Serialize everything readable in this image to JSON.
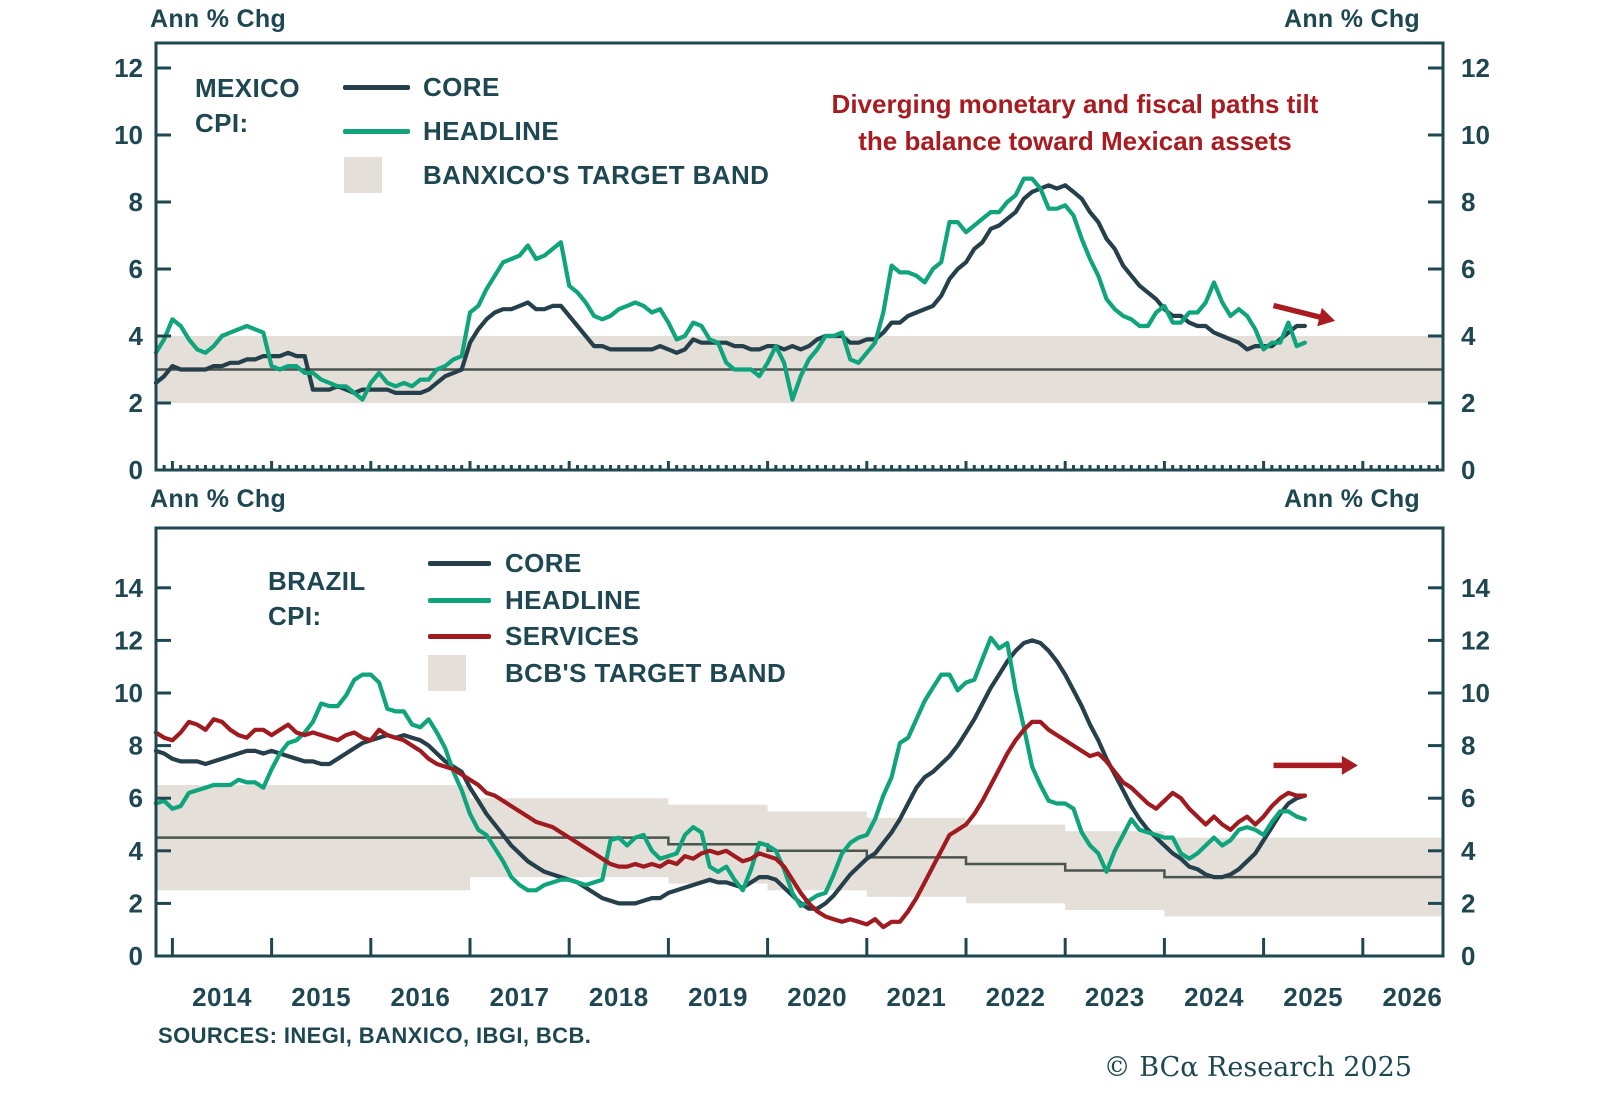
{
  "page": {
    "sources_label": "SOURCES: INEGI, BANXICO, IBGI, BCB.",
    "copyright": "© BCα Research 2025",
    "annotation": {
      "line1": "Diverging monetary and fiscal paths tilt",
      "line2": "the balance toward Mexican assets"
    }
  },
  "colors": {
    "text": "#1e4752",
    "axis": "#1e4752",
    "core": "#253f4b",
    "headline": "#0fa47c",
    "services": "#9f1b20",
    "band": "#e4dfd9",
    "band_center": "#4a5550",
    "accent_red": "#a81c21"
  },
  "chart_data": [
    {
      "type": "line",
      "title_line1": "MEXICO",
      "title_line2": "CPI:",
      "ylabel_left": "Ann % Chg",
      "ylabel_right": "Ann % Chg",
      "ylim": [
        0,
        12.75
      ],
      "y_ticks": [
        0,
        2,
        4,
        6,
        8,
        10,
        12
      ],
      "x_range": [
        2013.83,
        2026.81
      ],
      "x_start": 2013.8333,
      "x_step_years": 0.0833333,
      "grid": false,
      "legend_position": "top-left-inside",
      "legend": [
        {
          "label": "CORE",
          "type": "line",
          "color_key": "core"
        },
        {
          "label": "HEADLINE",
          "type": "line",
          "color_key": "headline"
        },
        {
          "label": "BANXICO'S TARGET BAND",
          "type": "band",
          "color_key": "band"
        }
      ],
      "target_band": [
        {
          "from": 2013.83,
          "to": 2026.81,
          "low": 2.0,
          "high": 4.0,
          "center": 3.0
        }
      ],
      "series": [
        {
          "name": "CORE",
          "color_key": "core",
          "values": [
            2.6,
            2.8,
            3.1,
            3.0,
            3.0,
            3.0,
            3.0,
            3.1,
            3.1,
            3.2,
            3.2,
            3.3,
            3.3,
            3.4,
            3.4,
            3.4,
            3.5,
            3.4,
            3.4,
            2.4,
            2.4,
            2.4,
            2.5,
            2.4,
            2.3,
            2.4,
            2.4,
            2.4,
            2.4,
            2.3,
            2.3,
            2.3,
            2.3,
            2.4,
            2.6,
            2.8,
            2.9,
            3.0,
            3.8,
            4.2,
            4.5,
            4.7,
            4.8,
            4.8,
            4.9,
            5.0,
            4.8,
            4.8,
            4.9,
            4.9,
            4.6,
            4.3,
            4.0,
            3.7,
            3.7,
            3.6,
            3.6,
            3.6,
            3.6,
            3.6,
            3.6,
            3.7,
            3.6,
            3.5,
            3.6,
            3.9,
            3.8,
            3.8,
            3.8,
            3.8,
            3.7,
            3.7,
            3.6,
            3.6,
            3.7,
            3.7,
            3.6,
            3.7,
            3.6,
            3.7,
            3.9,
            4.0,
            4.0,
            4.0,
            3.8,
            3.8,
            3.9,
            3.9,
            4.1,
            4.4,
            4.4,
            4.6,
            4.7,
            4.8,
            4.9,
            5.2,
            5.7,
            6.0,
            6.2,
            6.6,
            6.8,
            7.2,
            7.3,
            7.5,
            7.7,
            8.1,
            8.3,
            8.4,
            8.5,
            8.4,
            8.5,
            8.3,
            8.1,
            7.7,
            7.4,
            6.9,
            6.6,
            6.1,
            5.8,
            5.5,
            5.3,
            5.1,
            4.8,
            4.6,
            4.6,
            4.4,
            4.3,
            4.3,
            4.1,
            4.0,
            3.9,
            3.8,
            3.6,
            3.7,
            3.7,
            3.7,
            3.9,
            4.1,
            4.3,
            4.3
          ]
        },
        {
          "name": "HEADLINE",
          "color_key": "headline",
          "values": [
            3.5,
            3.9,
            4.5,
            4.3,
            3.9,
            3.6,
            3.5,
            3.7,
            4.0,
            4.1,
            4.2,
            4.3,
            4.2,
            4.1,
            3.1,
            3.0,
            3.1,
            3.1,
            2.9,
            2.9,
            2.7,
            2.6,
            2.5,
            2.5,
            2.3,
            2.1,
            2.6,
            2.9,
            2.6,
            2.5,
            2.6,
            2.5,
            2.7,
            2.7,
            3.0,
            3.1,
            3.3,
            3.4,
            4.7,
            4.9,
            5.4,
            5.8,
            6.2,
            6.3,
            6.4,
            6.7,
            6.3,
            6.4,
            6.6,
            6.8,
            5.5,
            5.3,
            5.0,
            4.6,
            4.5,
            4.6,
            4.8,
            4.9,
            5.0,
            4.9,
            4.7,
            4.8,
            4.4,
            3.9,
            4.0,
            4.4,
            4.3,
            3.9,
            3.8,
            3.2,
            3.0,
            3.0,
            3.0,
            2.8,
            3.2,
            3.7,
            3.2,
            2.1,
            2.8,
            3.3,
            3.6,
            4.0,
            4.0,
            4.1,
            3.3,
            3.2,
            3.5,
            3.8,
            4.7,
            6.1,
            5.9,
            5.9,
            5.8,
            5.6,
            6.0,
            6.2,
            7.4,
            7.4,
            7.1,
            7.3,
            7.5,
            7.7,
            7.7,
            8.0,
            8.2,
            8.7,
            8.7,
            8.4,
            7.8,
            7.8,
            7.9,
            7.6,
            6.9,
            6.3,
            5.8,
            5.1,
            4.8,
            4.6,
            4.5,
            4.3,
            4.3,
            4.7,
            4.9,
            4.4,
            4.4,
            4.7,
            4.7,
            5.0,
            5.6,
            5.0,
            4.6,
            4.8,
            4.6,
            4.2,
            3.6,
            3.8,
            3.8,
            4.4,
            3.7,
            3.8
          ]
        }
      ],
      "arrow": {
        "x1": 2025.1,
        "y1": 4.91,
        "x2": 2025.72,
        "y2": 4.45
      }
    },
    {
      "type": "line",
      "title_line1": "BRAZIL",
      "title_line2": "CPI:",
      "ylabel_left": "Ann % Chg",
      "ylabel_right": "Ann % Chg",
      "ylim": [
        0,
        16.2
      ],
      "y_ticks": [
        0,
        2,
        4,
        6,
        8,
        10,
        12,
        14
      ],
      "x_range": [
        2013.83,
        2026.81
      ],
      "x_start": 2013.8333,
      "x_step_years": 0.0833333,
      "grid": false,
      "x_tick_labels": [
        "2014",
        "2015",
        "2016",
        "2017",
        "2018",
        "2019",
        "2020",
        "2021",
        "2022",
        "2023",
        "2024",
        "2025",
        "2026"
      ],
      "legend_position": "top-left-inside",
      "legend": [
        {
          "label": "CORE",
          "type": "line",
          "color_key": "core"
        },
        {
          "label": "HEADLINE",
          "type": "line",
          "color_key": "headline"
        },
        {
          "label": "SERVICES",
          "type": "line",
          "color_key": "services"
        },
        {
          "label": "BCB'S TARGET BAND",
          "type": "band",
          "color_key": "band"
        }
      ],
      "target_band": [
        {
          "from": 2013.83,
          "to": 2017,
          "low": 2.5,
          "high": 6.5,
          "center": 4.5
        },
        {
          "from": 2017,
          "to": 2019,
          "low": 3.0,
          "high": 6.0,
          "center": 4.5
        },
        {
          "from": 2019,
          "to": 2020,
          "low": 2.75,
          "high": 5.75,
          "center": 4.25
        },
        {
          "from": 2020,
          "to": 2021,
          "low": 2.5,
          "high": 5.5,
          "center": 4.0
        },
        {
          "from": 2021,
          "to": 2022,
          "low": 2.25,
          "high": 5.25,
          "center": 3.75
        },
        {
          "from": 2022,
          "to": 2023,
          "low": 2.0,
          "high": 5.0,
          "center": 3.5
        },
        {
          "from": 2023,
          "to": 2024,
          "low": 1.75,
          "high": 4.75,
          "center": 3.25
        },
        {
          "from": 2024,
          "to": 2026.81,
          "low": 1.5,
          "high": 4.5,
          "center": 3.0
        }
      ],
      "series": [
        {
          "name": "CORE",
          "color_key": "core",
          "values": [
            7.8,
            7.7,
            7.5,
            7.4,
            7.4,
            7.4,
            7.3,
            7.4,
            7.5,
            7.6,
            7.7,
            7.8,
            7.8,
            7.7,
            7.8,
            7.7,
            7.6,
            7.5,
            7.4,
            7.4,
            7.3,
            7.3,
            7.5,
            7.7,
            7.9,
            8.1,
            8.2,
            8.3,
            8.4,
            8.3,
            8.4,
            8.3,
            8.2,
            8.0,
            7.7,
            7.4,
            7.2,
            7.0,
            6.4,
            5.9,
            5.4,
            5.0,
            4.6,
            4.2,
            3.9,
            3.6,
            3.4,
            3.2,
            3.1,
            3.0,
            2.9,
            2.8,
            2.6,
            2.4,
            2.2,
            2.1,
            2.0,
            2.0,
            2.0,
            2.1,
            2.2,
            2.2,
            2.4,
            2.5,
            2.6,
            2.7,
            2.8,
            2.9,
            2.8,
            2.8,
            2.7,
            2.6,
            2.8,
            3.0,
            3.0,
            2.9,
            2.6,
            2.3,
            2.0,
            1.8,
            1.8,
            2.0,
            2.3,
            2.7,
            3.1,
            3.4,
            3.7,
            3.9,
            4.3,
            4.7,
            5.2,
            5.8,
            6.4,
            6.8,
            7.0,
            7.3,
            7.6,
            8.0,
            8.5,
            9.0,
            9.6,
            10.2,
            10.7,
            11.2,
            11.6,
            11.9,
            12.0,
            11.9,
            11.6,
            11.2,
            10.7,
            10.1,
            9.5,
            8.8,
            8.2,
            7.5,
            6.9,
            6.3,
            5.7,
            5.2,
            4.8,
            4.5,
            4.2,
            3.9,
            3.7,
            3.4,
            3.3,
            3.1,
            3.0,
            3.0,
            3.1,
            3.3,
            3.6,
            3.9,
            4.4,
            4.9,
            5.4,
            5.8,
            6.0,
            6.1
          ]
        },
        {
          "name": "HEADLINE",
          "color_key": "headline",
          "values": [
            5.8,
            5.9,
            5.6,
            5.7,
            6.2,
            6.3,
            6.4,
            6.5,
            6.5,
            6.5,
            6.7,
            6.6,
            6.6,
            6.4,
            7.1,
            7.7,
            8.1,
            8.2,
            8.5,
            8.9,
            9.6,
            9.5,
            9.5,
            9.9,
            10.5,
            10.7,
            10.7,
            10.4,
            9.4,
            9.3,
            9.3,
            8.8,
            8.7,
            9.0,
            8.5,
            7.9,
            7.0,
            6.3,
            5.4,
            4.8,
            4.6,
            4.1,
            3.6,
            3.0,
            2.7,
            2.5,
            2.5,
            2.7,
            2.8,
            2.9,
            2.9,
            2.8,
            2.7,
            2.8,
            2.9,
            4.4,
            4.5,
            4.2,
            4.5,
            4.6,
            4.0,
            3.7,
            3.8,
            3.9,
            4.6,
            4.9,
            4.7,
            3.4,
            3.2,
            3.4,
            2.9,
            2.5,
            3.3,
            4.3,
            4.2,
            4.0,
            3.3,
            2.4,
            1.9,
            2.1,
            2.3,
            2.4,
            3.1,
            3.9,
            4.3,
            4.5,
            4.6,
            5.2,
            6.1,
            6.8,
            8.1,
            8.3,
            9.0,
            9.7,
            10.2,
            10.7,
            10.7,
            10.1,
            10.4,
            10.5,
            11.3,
            12.1,
            11.7,
            11.9,
            10.1,
            8.7,
            7.2,
            6.5,
            5.9,
            5.8,
            5.8,
            5.6,
            4.7,
            4.2,
            3.9,
            3.2,
            4.0,
            4.6,
            5.2,
            4.8,
            4.7,
            4.6,
            4.5,
            4.5,
            3.9,
            3.7,
            3.9,
            4.2,
            4.5,
            4.2,
            4.4,
            4.8,
            4.9,
            4.8,
            4.6,
            5.1,
            5.5,
            5.5,
            5.3,
            5.2
          ]
        },
        {
          "name": "SERVICES",
          "color_key": "services",
          "values": [
            8.5,
            8.3,
            8.2,
            8.5,
            8.9,
            8.8,
            8.6,
            9.0,
            8.9,
            8.6,
            8.4,
            8.3,
            8.6,
            8.6,
            8.4,
            8.6,
            8.8,
            8.5,
            8.4,
            8.5,
            8.4,
            8.3,
            8.2,
            8.4,
            8.5,
            8.3,
            8.2,
            8.6,
            8.4,
            8.3,
            8.2,
            8.0,
            7.8,
            7.5,
            7.3,
            7.2,
            7.1,
            6.9,
            6.7,
            6.5,
            6.2,
            6.1,
            5.9,
            5.7,
            5.5,
            5.3,
            5.1,
            5.0,
            4.9,
            4.7,
            4.5,
            4.3,
            4.1,
            3.9,
            3.7,
            3.5,
            3.4,
            3.4,
            3.5,
            3.4,
            3.5,
            3.4,
            3.6,
            3.5,
            3.8,
            3.7,
            3.9,
            4.0,
            3.9,
            4.0,
            3.8,
            3.6,
            3.7,
            3.9,
            3.8,
            3.7,
            3.4,
            2.9,
            2.4,
            2.0,
            1.7,
            1.5,
            1.4,
            1.3,
            1.4,
            1.3,
            1.2,
            1.4,
            1.1,
            1.3,
            1.3,
            1.7,
            2.2,
            2.8,
            3.4,
            4.0,
            4.6,
            4.8,
            5.0,
            5.4,
            5.9,
            6.5,
            7.1,
            7.7,
            8.2,
            8.6,
            8.9,
            8.9,
            8.6,
            8.4,
            8.2,
            8.0,
            7.8,
            7.6,
            7.7,
            7.4,
            7.0,
            6.6,
            6.4,
            6.1,
            5.8,
            5.6,
            5.9,
            6.2,
            6.0,
            5.6,
            5.3,
            5.0,
            5.3,
            5.0,
            4.8,
            5.1,
            5.3,
            5.0,
            5.3,
            5.7,
            6.0,
            6.2,
            6.1,
            6.1
          ]
        }
      ],
      "arrow": {
        "x1": 2025.1,
        "y1": 7.25,
        "x2": 2025.95,
        "y2": 7.25
      }
    }
  ]
}
